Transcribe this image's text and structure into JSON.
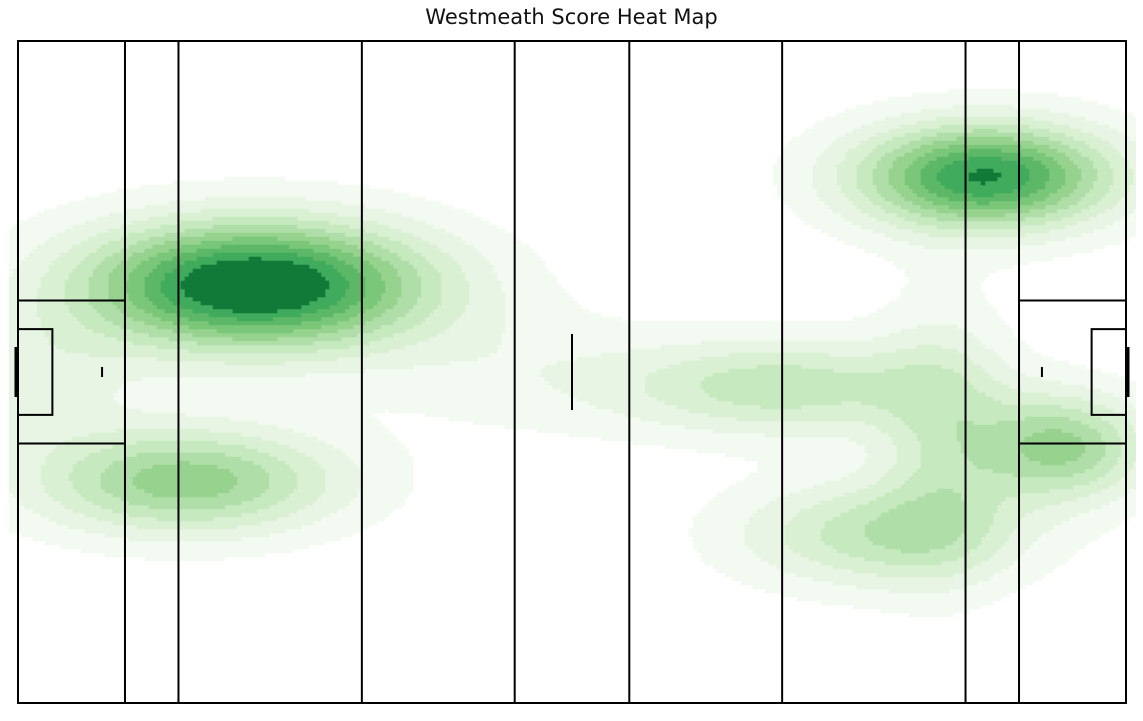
{
  "chart_data": {
    "type": "heatmap",
    "title": "Westmeath Score Heat Map",
    "xlabel": "",
    "ylabel": "",
    "grid": false,
    "colormap": "Greens",
    "colors": {
      "lines": "#000000",
      "background": "#ffffff",
      "levels": [
        "#f3faf1",
        "#e8f5e4",
        "#d9f0d3",
        "#c7e9c0",
        "#b0dea8",
        "#97d38f",
        "#7ac77a",
        "#5cb867",
        "#41ab5d",
        "#117a38"
      ]
    },
    "pitch": {
      "length": 145,
      "width": 88,
      "markings_x": [
        0,
        14,
        21,
        45,
        65,
        80,
        100,
        124,
        131,
        145
      ]
    },
    "hotspots": [
      {
        "x": 31,
        "y": 55.5,
        "sx": 16,
        "sy": 6,
        "weight": 1.0
      },
      {
        "x": 22,
        "y": 29.5,
        "sx": 14,
        "sy": 5,
        "weight": 0.55
      },
      {
        "x": 126.5,
        "y": 70,
        "sx": 12,
        "sy": 5,
        "weight": 0.85
      },
      {
        "x": 100,
        "y": 42,
        "sx": 15,
        "sy": 4.5,
        "weight": 0.38
      },
      {
        "x": 136.5,
        "y": 34,
        "sx": 8,
        "sy": 5,
        "weight": 0.52
      },
      {
        "x": 113,
        "y": 22.5,
        "sx": 13,
        "sy": 5,
        "weight": 0.38
      },
      {
        "x": 121,
        "y": 36,
        "sx": 6,
        "sy": 12,
        "weight": 0.25
      },
      {
        "x": 1,
        "y": 43,
        "sx": 10,
        "sy": 6,
        "weight": 0.18
      },
      {
        "x": 66,
        "y": 44,
        "sx": 14,
        "sy": 6,
        "weight": 0.1
      }
    ]
  }
}
